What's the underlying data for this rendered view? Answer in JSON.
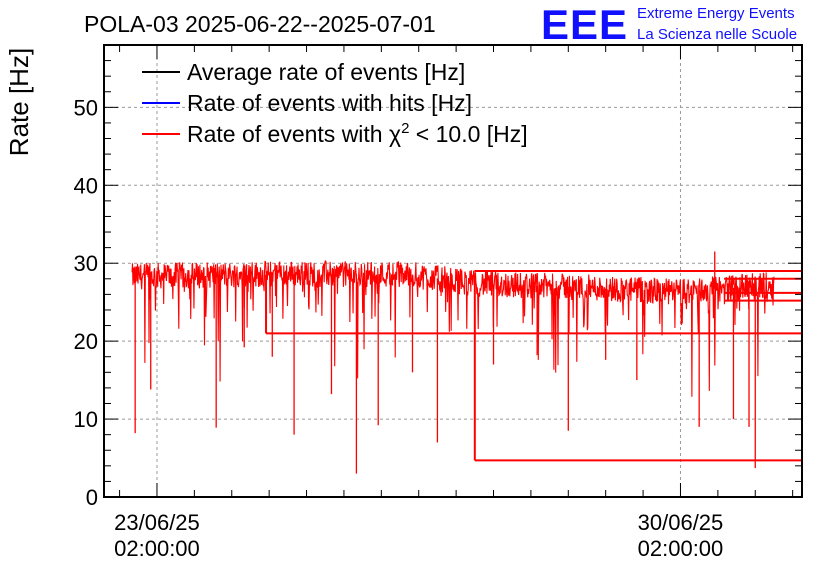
{
  "header": {
    "title": "POLA-03 2025-06-22--2025-07-01",
    "logo_text": "EEE",
    "logo_line1": "Extreme Energy Events",
    "logo_line2": "La Scienza nelle Scuole"
  },
  "colors": {
    "average": "#000000",
    "hits": "#0000ff",
    "chi2": "#ff0000",
    "logo": "#1010ff",
    "grid": "#9a9a9a"
  },
  "chart_data": {
    "type": "line",
    "title": "POLA-03 2025-06-22--2025-07-01",
    "xlabel": "",
    "ylabel": "Rate [Hz]",
    "ylim": [
      0,
      58
    ],
    "xlim": [
      "2025-06-22 09:00",
      "2025-07-01 17:00"
    ],
    "grid": true,
    "legend_position": "top-left",
    "y_ticks": [
      "0",
      "10",
      "20",
      "30",
      "40",
      "50"
    ],
    "x_ticks": [
      {
        "at": "2025-06-23 02:00",
        "line1": "23/06/25",
        "line2": "02:00:00"
      },
      {
        "at": "2025-06-30 02:00",
        "line1": "30/06/25",
        "line2": "02:00:00"
      }
    ],
    "legend": [
      {
        "key": "average",
        "label": "Average rate of events [Hz]",
        "sup": ""
      },
      {
        "key": "hits",
        "label": "Rate of events with hits [Hz]",
        "sup": ""
      },
      {
        "key": "chi2",
        "label_pre": "Rate of events with ",
        "chi": "χ",
        "sup": "2",
        "label_post": " < 10.0 [Hz]"
      }
    ],
    "series": [
      {
        "name": "Rate of events with χ2 < 10.0 [Hz]",
        "color": "#ff0000",
        "x_start": "2025-06-22 18:00",
        "x_end": "2025-07-01 08:00",
        "baseline": [
          {
            "x": "2025-06-22 18:00",
            "y": 28.3
          },
          {
            "x": "2025-06-24 12:00",
            "y": 28.6
          },
          {
            "x": "2025-06-26 10:00",
            "y": 28.6
          },
          {
            "x": "2025-06-27 08:00",
            "y": 27.4
          },
          {
            "x": "2025-06-29 00:00",
            "y": 26.8
          },
          {
            "x": "2025-06-30 00:00",
            "y": 26.3
          },
          {
            "x": "2025-07-01 08:00",
            "y": 27.2
          }
        ],
        "spikes": [
          {
            "x": "2025-06-22 19:00",
            "y": 8.2
          },
          {
            "x": "2025-06-23 00:00",
            "y": 13.8
          },
          {
            "x": "2025-06-23 21:00",
            "y": 8.9
          },
          {
            "x": "2025-06-24 06:00",
            "y": 19.2
          },
          {
            "x": "2025-06-24 15:00",
            "y": 18.0
          },
          {
            "x": "2025-06-24 22:00",
            "y": 8.0
          },
          {
            "x": "2025-06-25 10:00",
            "y": 13.2
          },
          {
            "x": "2025-06-25 18:00",
            "y": 3.0
          },
          {
            "x": "2025-06-26 01:00",
            "y": 9.2
          },
          {
            "x": "2025-06-26 12:00",
            "y": 16.0
          },
          {
            "x": "2025-06-26 20:00",
            "y": 7.0
          },
          {
            "x": "2025-06-27 14:00",
            "y": 17.0
          },
          {
            "x": "2025-06-28 04:00",
            "y": 18.2
          },
          {
            "x": "2025-06-28 14:00",
            "y": 8.5
          },
          {
            "x": "2025-06-29 02:00",
            "y": 17.6
          },
          {
            "x": "2025-06-29 12:00",
            "y": 15.0
          },
          {
            "x": "2025-06-30 08:00",
            "y": 9.0
          },
          {
            "x": "2025-06-30 19:00",
            "y": 10.0
          },
          {
            "x": "2025-07-01 00:00",
            "y": 9.0
          },
          {
            "x": "2025-07-01 02:00",
            "y": 3.7
          }
        ],
        "peak": {
          "x": "2025-06-30 13:00",
          "y": 31.5
        },
        "step_lines": [
          {
            "y": 21.0,
            "x_from": "2025-06-24 13:00",
            "x_to": "2025-07-01 17:00"
          },
          {
            "y": 4.7,
            "x_from": "2025-06-27 08:00",
            "x_to": "2025-07-01 17:00"
          },
          {
            "y": 29.0,
            "x_from": "2025-06-27 08:00",
            "x_to": "2025-07-01 17:00"
          },
          {
            "y": 28.0,
            "x_from": "2025-06-30 16:00",
            "x_to": "2025-07-01 17:00"
          },
          {
            "y": 26.2,
            "x_from": "2025-06-30 16:00",
            "x_to": "2025-07-01 17:00"
          },
          {
            "y": 25.2,
            "x_from": "2025-06-30 16:00",
            "x_to": "2025-07-01 17:00"
          }
        ]
      }
    ]
  }
}
